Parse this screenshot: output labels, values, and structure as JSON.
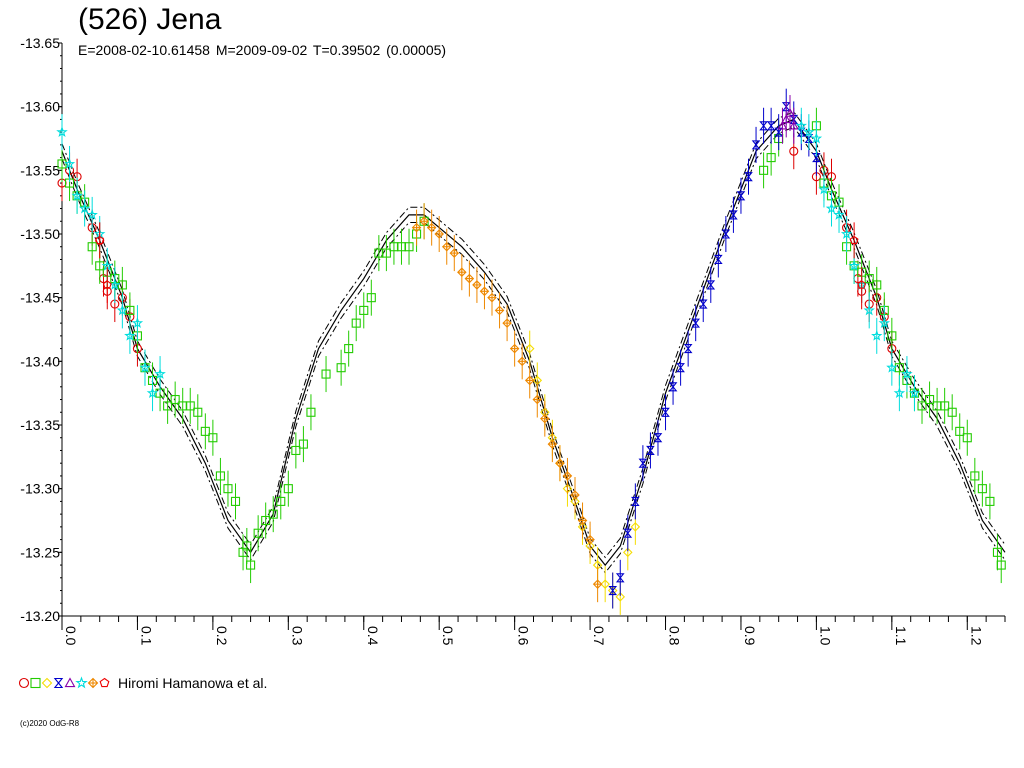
{
  "header": {
    "title": "(526) Jena",
    "subtitle": "E=2008-02-10.61458    M=2009-09-02    T=0.39502 (0.00005)"
  },
  "legend": {
    "label": "Hiromi Hamanowa et al."
  },
  "footer": {
    "copyright": "(c)2020 OdG-R8"
  },
  "chart_data": {
    "type": "scatter",
    "title": "(526) Jena",
    "xlabel": "",
    "ylabel": "",
    "xlim": [
      0.0,
      1.25
    ],
    "ylim": [
      -13.65,
      -13.2
    ],
    "x_ticks": [
      "0.0",
      "0.1",
      "0.2",
      "0.3",
      "0.4",
      "0.5",
      "0.6",
      "0.7",
      "0.8",
      "0.9",
      "1.0",
      "1.1",
      "1.2"
    ],
    "y_ticks": [
      "-13.65",
      "-13.60",
      "-13.55",
      "-13.50",
      "-13.45",
      "-13.40",
      "-13.35",
      "-13.30",
      "-13.25",
      "-13.20"
    ],
    "grid": false,
    "legend_position": "bottom-left",
    "model_curve": {
      "style": "solid with dash-dot envelopes",
      "x": [
        0.0,
        0.02,
        0.05,
        0.08,
        0.1,
        0.13,
        0.16,
        0.19,
        0.22,
        0.25,
        0.28,
        0.31,
        0.34,
        0.37,
        0.4,
        0.43,
        0.46,
        0.48,
        0.5,
        0.53,
        0.56,
        0.59,
        0.62,
        0.65,
        0.68,
        0.7,
        0.72,
        0.74,
        0.77,
        0.8,
        0.84,
        0.88,
        0.92,
        0.95,
        0.97,
        1.0,
        1.02,
        1.05,
        1.08,
        1.1,
        1.13,
        1.16,
        1.19,
        1.22,
        1.25
      ],
      "y": [
        -13.565,
        -13.535,
        -13.495,
        -13.45,
        -13.41,
        -13.38,
        -13.355,
        -13.32,
        -13.275,
        -13.25,
        -13.28,
        -13.355,
        -13.41,
        -13.44,
        -13.465,
        -13.495,
        -13.515,
        -13.515,
        -13.505,
        -13.49,
        -13.47,
        -13.445,
        -13.4,
        -13.34,
        -13.29,
        -13.255,
        -13.24,
        -13.255,
        -13.31,
        -13.375,
        -13.44,
        -13.505,
        -13.565,
        -13.585,
        -13.59,
        -13.565,
        -13.535,
        -13.495,
        -13.45,
        -13.41,
        -13.38,
        -13.355,
        -13.32,
        -13.275,
        -13.25
      ],
      "envelope_offset": 0.006
    },
    "series": [
      {
        "name": "",
        "marker": "circle",
        "color": "#dd0000",
        "x": [
          0.0,
          0.01,
          0.02,
          0.04,
          0.05,
          0.055,
          0.06,
          0.07,
          0.08,
          0.09,
          0.1,
          0.97,
          1.0,
          1.01,
          1.02,
          1.04,
          1.055,
          1.06,
          1.07,
          1.08,
          1.09,
          1.1
        ],
        "y": [
          -13.54,
          -13.55,
          -13.545,
          -13.505,
          -13.495,
          -13.465,
          -13.455,
          -13.445,
          -13.45,
          -13.435,
          -13.41,
          -13.565,
          -13.545,
          -13.55,
          -13.545,
          -13.505,
          -13.465,
          -13.455,
          -13.445,
          -13.45,
          -13.435,
          -13.41
        ]
      },
      {
        "name": "",
        "marker": "square",
        "color": "#22cc00",
        "x": [
          0.0,
          0.01,
          0.02,
          0.03,
          0.04,
          0.05,
          0.06,
          0.07,
          0.08,
          0.09,
          0.1,
          0.11,
          0.12,
          0.13,
          0.14,
          0.15,
          0.16,
          0.17,
          0.18,
          0.19,
          0.2,
          0.21,
          0.22,
          0.23,
          0.24,
          0.245,
          0.25,
          0.26,
          0.27,
          0.28,
          0.29,
          0.3,
          0.31,
          0.32,
          0.33,
          0.35,
          0.37,
          0.38,
          0.39,
          0.4,
          0.41,
          0.42,
          0.43,
          0.44,
          0.45,
          0.46,
          0.47,
          0.48,
          0.93,
          0.94,
          0.95,
          1.0,
          1.01,
          1.02,
          1.03,
          1.04,
          1.05,
          1.06,
          1.07,
          1.08,
          1.09,
          1.1,
          1.11,
          1.12,
          1.13,
          1.14,
          1.15,
          1.16,
          1.17,
          1.18,
          1.19,
          1.2,
          1.21,
          1.22,
          1.23,
          1.24,
          1.245
        ],
        "y": [
          -13.555,
          -13.54,
          -13.53,
          -13.525,
          -13.49,
          -13.475,
          -13.47,
          -13.465,
          -13.46,
          -13.44,
          -13.42,
          -13.395,
          -13.385,
          -13.375,
          -13.365,
          -13.37,
          -13.365,
          -13.365,
          -13.36,
          -13.345,
          -13.34,
          -13.31,
          -13.3,
          -13.29,
          -13.25,
          -13.255,
          -13.24,
          -13.265,
          -13.275,
          -13.28,
          -13.29,
          -13.3,
          -13.33,
          -13.335,
          -13.36,
          -13.39,
          -13.395,
          -13.41,
          -13.43,
          -13.44,
          -13.45,
          -13.485,
          -13.485,
          -13.49,
          -13.49,
          -13.49,
          -13.5,
          -13.51,
          -13.55,
          -13.56,
          -13.575,
          -13.585,
          -13.54,
          -13.53,
          -13.525,
          -13.49,
          -13.475,
          -13.47,
          -13.465,
          -13.46,
          -13.44,
          -13.42,
          -13.395,
          -13.385,
          -13.375,
          -13.365,
          -13.37,
          -13.365,
          -13.365,
          -13.36,
          -13.345,
          -13.34,
          -13.31,
          -13.3,
          -13.29,
          -13.25,
          -13.24
        ]
      },
      {
        "name": "",
        "marker": "diamond",
        "color": "#f5dd00",
        "x": [
          0.62,
          0.63,
          0.64,
          0.65,
          0.66,
          0.67,
          0.68,
          0.69,
          0.7,
          0.71,
          0.72,
          0.73,
          0.74,
          0.75,
          0.76
        ],
        "y": [
          -13.41,
          -13.385,
          -13.36,
          -13.34,
          -13.32,
          -13.3,
          -13.29,
          -13.27,
          -13.255,
          -13.24,
          -13.225,
          -13.22,
          -13.215,
          -13.25,
          -13.27
        ]
      },
      {
        "name": "",
        "marker": "hourglass",
        "color": "#0000cc",
        "x": [
          0.73,
          0.74,
          0.75,
          0.76,
          0.77,
          0.78,
          0.79,
          0.8,
          0.81,
          0.82,
          0.83,
          0.84,
          0.85,
          0.86,
          0.87,
          0.88,
          0.89,
          0.9,
          0.91,
          0.92,
          0.93,
          0.94,
          0.95,
          0.96,
          0.97,
          0.98,
          0.99,
          1.0
        ],
        "y": [
          -13.22,
          -13.23,
          -13.265,
          -13.29,
          -13.32,
          -13.33,
          -13.34,
          -13.36,
          -13.38,
          -13.395,
          -13.41,
          -13.43,
          -13.445,
          -13.46,
          -13.48,
          -13.5,
          -13.515,
          -13.53,
          -13.545,
          -13.57,
          -13.585,
          -13.585,
          -13.58,
          -13.6,
          -13.59,
          -13.58,
          -13.575,
          -13.56
        ]
      },
      {
        "name": "",
        "marker": "triangle",
        "color": "#8800aa",
        "x": [
          0.955,
          0.96,
          0.965,
          0.97
        ],
        "y": [
          -13.585,
          -13.59,
          -13.595,
          -13.585
        ]
      },
      {
        "name": "",
        "marker": "star",
        "color": "#00dddd",
        "x": [
          0.0,
          0.01,
          0.02,
          0.03,
          0.04,
          0.05,
          0.06,
          0.07,
          0.08,
          0.09,
          0.1,
          0.11,
          0.12,
          0.13,
          0.98,
          0.99,
          1.0,
          1.01,
          1.02,
          1.03,
          1.04,
          1.05,
          1.06,
          1.07,
          1.08,
          1.09,
          1.1,
          1.11,
          1.12,
          1.13
        ],
        "y": [
          -13.58,
          -13.555,
          -13.53,
          -13.52,
          -13.515,
          -13.5,
          -13.475,
          -13.46,
          -13.44,
          -13.42,
          -13.43,
          -13.395,
          -13.375,
          -13.39,
          -13.585,
          -13.58,
          -13.575,
          -13.535,
          -13.52,
          -13.515,
          -13.5,
          -13.475,
          -13.46,
          -13.44,
          -13.42,
          -13.43,
          -13.395,
          -13.375,
          -13.39,
          -13.375
        ]
      },
      {
        "name": "",
        "marker": "cross-diamond",
        "color": "#ee8800",
        "x": [
          0.47,
          0.48,
          0.49,
          0.5,
          0.51,
          0.52,
          0.53,
          0.54,
          0.55,
          0.56,
          0.57,
          0.58,
          0.59,
          0.6,
          0.61,
          0.62,
          0.63,
          0.64,
          0.65,
          0.66,
          0.67,
          0.68,
          0.69,
          0.7,
          0.71
        ],
        "y": [
          -13.505,
          -13.51,
          -13.505,
          -13.5,
          -13.49,
          -13.485,
          -13.47,
          -13.465,
          -13.46,
          -13.455,
          -13.45,
          -13.44,
          -13.43,
          -13.41,
          -13.4,
          -13.385,
          -13.37,
          -13.355,
          -13.335,
          -13.32,
          -13.31,
          -13.295,
          -13.275,
          -13.26,
          -13.225
        ]
      },
      {
        "name": "",
        "marker": "pentagon",
        "color": "#ee0000",
        "x": [
          0.05,
          0.06,
          1.05,
          1.06
        ],
        "y": [
          -13.495,
          -13.46,
          -13.495,
          -13.46
        ]
      }
    ]
  }
}
